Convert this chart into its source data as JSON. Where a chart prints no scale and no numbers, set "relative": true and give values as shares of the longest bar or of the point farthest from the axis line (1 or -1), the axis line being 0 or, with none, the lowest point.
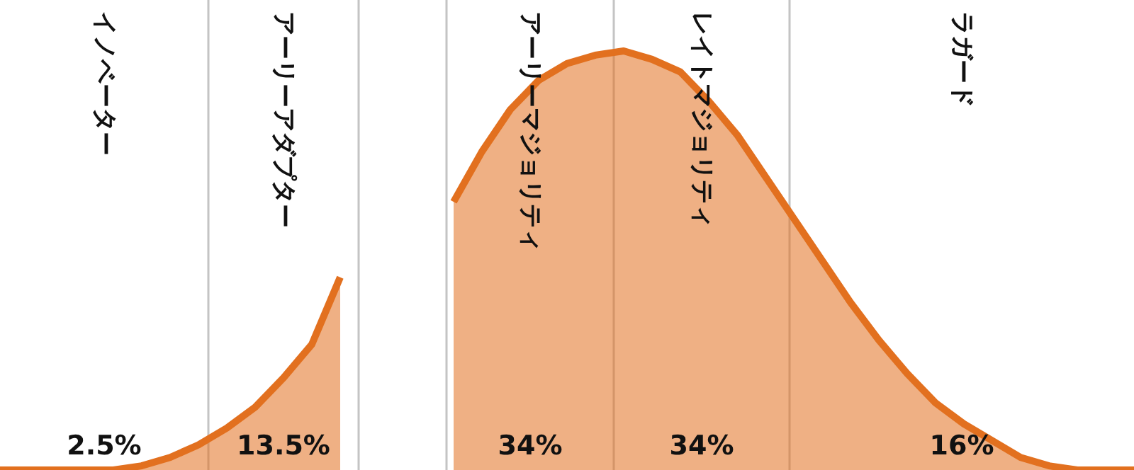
{
  "chart_data": {
    "type": "area",
    "relative": true,
    "categories": [
      null,
      null,
      null,
      null,
      null,
      null,
      null,
      null,
      null,
      null,
      null,
      null,
      null,
      null,
      null,
      null,
      null,
      null,
      null,
      null,
      null,
      null,
      null,
      null,
      null,
      null,
      null,
      null,
      null,
      null,
      null,
      null,
      null,
      null,
      null,
      null,
      null,
      null,
      null,
      null,
      null
    ],
    "series": [
      {
        "color": "#e2701f",
        "values": [
          0,
          0,
          0,
          0,
          0,
          0.01,
          0.03,
          0.06,
          0.1,
          0.15,
          0.22,
          0.3,
          0.46,
          null,
          null,
          null,
          null,
          null,
          null,
          null,
          null,
          null,
          null,
          null,
          null,
          null,
          null,
          null,
          null,
          null,
          null,
          null,
          null,
          null,
          null,
          null,
          null,
          null,
          null,
          null,
          null
        ]
      },
      {
        "color": "#e2701f",
        "values": [
          null,
          null,
          null,
          null,
          null,
          null,
          null,
          null,
          null,
          null,
          null,
          null,
          null,
          null,
          null,
          null,
          0.64,
          0.76,
          0.86,
          0.93,
          0.97,
          0.99,
          1,
          0.98,
          0.95,
          0.88,
          0.8,
          0.7,
          0.6,
          0.5,
          0.4,
          0.31,
          0.23,
          0.16,
          0.11,
          0.07,
          0.03,
          0.01,
          0,
          0,
          0
        ]
      }
    ],
    "annotations": [
      "イノベーター",
      "2.5%",
      "アーリーアダプター",
      "13.5%",
      "アーリーマジョリティ",
      "34%",
      "レイトマジョリティ",
      "34%",
      "ラガード",
      "16%"
    ]
  }
}
